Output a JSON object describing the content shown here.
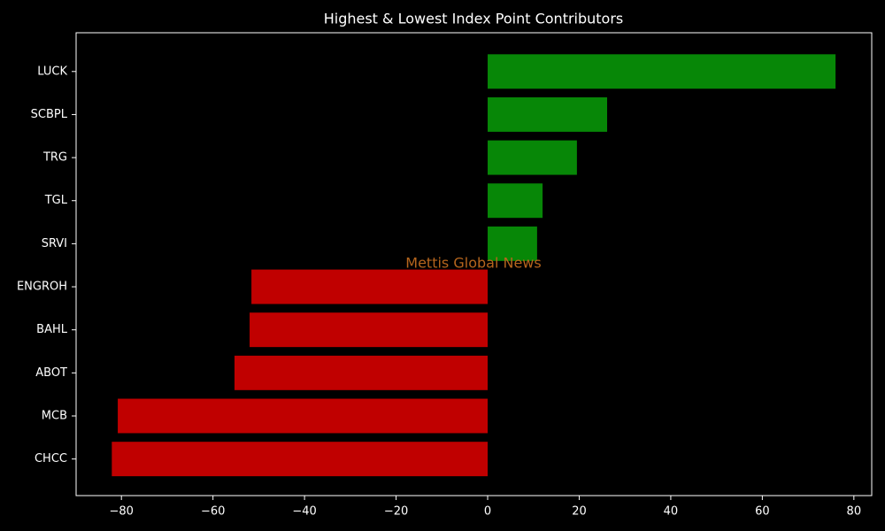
{
  "chart_data": {
    "type": "hbar",
    "title": "Highest & Lowest Index Point Contributors",
    "annotation": "Mettis Global News",
    "categories": [
      "LUCK",
      "SCBPL",
      "TRG",
      "TGL",
      "SRVI",
      "ENGROH",
      "BAHL",
      "ABOT",
      "MCB",
      "CHCC"
    ],
    "values": [
      76,
      26.1,
      19.5,
      12,
      10.8,
      -51.6,
      -52,
      -55.3,
      -80.8,
      -82.1
    ],
    "colors": [
      "#078707",
      "#078707",
      "#078707",
      "#078707",
      "#078707",
      "#c00000",
      "#c00000",
      "#c00000",
      "#c00000",
      "#c00000"
    ],
    "xlim": [
      -89.9,
      83.9
    ],
    "xticks": [
      {
        "value": -80,
        "label": "−80"
      },
      {
        "value": -60,
        "label": "−60"
      },
      {
        "value": -40,
        "label": "−40"
      },
      {
        "value": -20,
        "label": "−20"
      },
      0,
      20,
      40,
      60,
      80
    ],
    "grid": false
  }
}
